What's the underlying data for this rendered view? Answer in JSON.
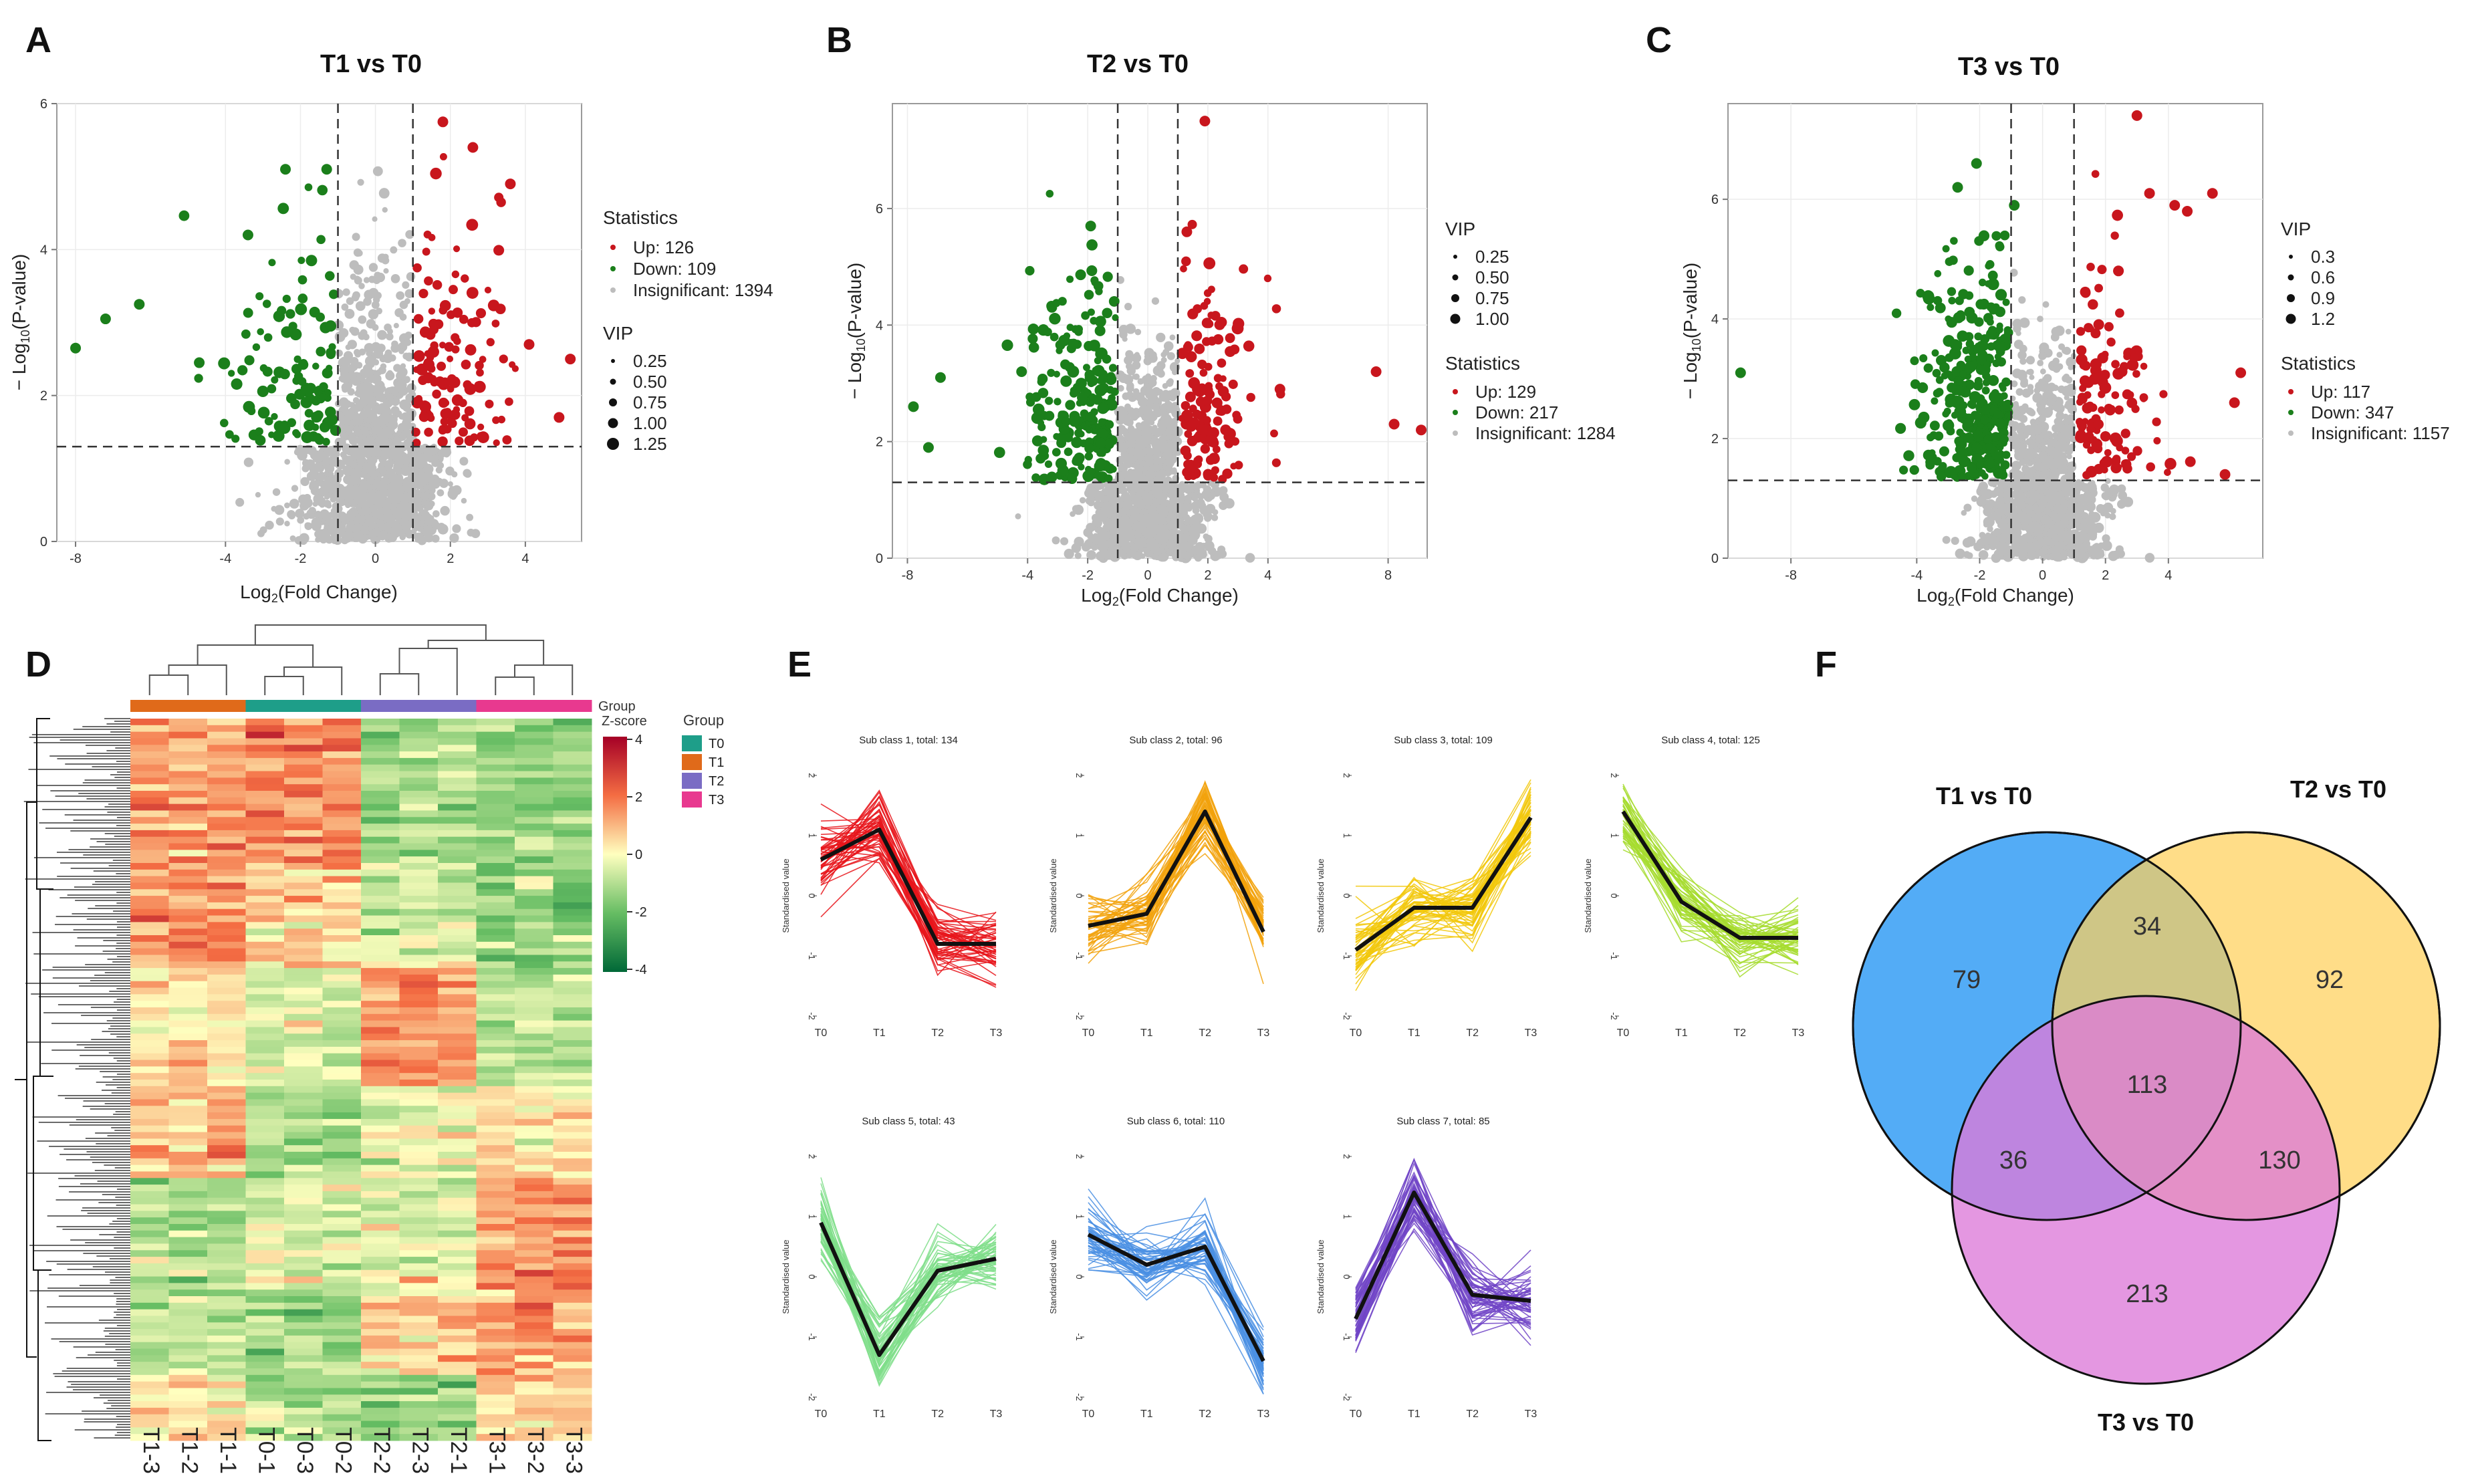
{
  "panels": [
    {
      "letter": "A",
      "title": "T1 vs T0"
    },
    {
      "letter": "B",
      "title": "T2 vs T0"
    },
    {
      "letter": "C",
      "title": "T3 vs T0"
    },
    {
      "letter": "D"
    },
    {
      "letter": "E"
    },
    {
      "letter": "F"
    }
  ],
  "colors": {
    "up": "#C8161D",
    "down": "#1B7F1B",
    "insig": "#BDBDBD",
    "axisBox": "#9a9a9a"
  },
  "chart_data": [
    {
      "id": "volcanoA",
      "type": "scatter",
      "title": "T1 vs T0",
      "xlabel": "Log2(Fold Change)",
      "ylabel": "-Log10(P-value)",
      "xlim": [
        -8.5,
        5.5
      ],
      "ylim": [
        0,
        6
      ],
      "xticks": [
        -8,
        -4,
        -2,
        0,
        2,
        4
      ],
      "yticks": [
        0,
        2,
        4,
        6
      ],
      "vlines": [
        -1,
        1
      ],
      "hline": 1.3,
      "statistics": {
        "title": "Statistics",
        "up": "Up: 126",
        "down": "Down: 109",
        "insig": "Insignificant: 1394"
      },
      "vip": {
        "title": "VIP",
        "levels": [
          "0.25",
          "0.50",
          "0.75",
          "1.00",
          "1.25"
        ]
      },
      "counts": {
        "up": 126,
        "down": 109,
        "insig": 1394
      },
      "down_extreme": [
        [
          -8,
          2.65
        ],
        [
          -7.2,
          3.05
        ],
        [
          -6.3,
          3.25
        ],
        [
          -4.7,
          2.45
        ],
        [
          -2.4,
          5.1
        ],
        [
          -1.3,
          5.1
        ],
        [
          -3.4,
          4.2
        ]
      ],
      "up_extreme": [
        [
          1.8,
          5.75
        ],
        [
          2.6,
          5.4
        ],
        [
          3.6,
          4.9
        ],
        [
          5.2,
          2.5
        ],
        [
          4.9,
          1.7
        ],
        [
          4.1,
          2.7
        ]
      ]
    },
    {
      "id": "volcanoB",
      "type": "scatter",
      "title": "T2 vs T0",
      "xlabel": "Log2(Fold Change)",
      "ylabel": "-Log10(P-value)",
      "xlim": [
        -8.5,
        9.3
      ],
      "ylim": [
        0,
        7.8
      ],
      "xticks": [
        -8,
        -4,
        -2,
        0,
        2,
        4,
        8
      ],
      "yticks": [
        0,
        2,
        4,
        6
      ],
      "vlines": [
        -1,
        1
      ],
      "hline": 1.3,
      "statistics": {
        "title": "Statistics",
        "up": "Up: 129",
        "down": "Down: 217",
        "insig": "Insignificant: 1284"
      },
      "vip": {
        "title": "VIP",
        "levels": [
          "0.25",
          "0.50",
          "0.75",
          "1.00"
        ]
      },
      "counts": {
        "up": 129,
        "down": 217,
        "insig": 1284
      },
      "down_extreme": [
        [
          -7.8,
          2.6
        ],
        [
          -7.3,
          1.9
        ],
        [
          -6.9,
          3.1
        ],
        [
          -4.2,
          3.2
        ],
        [
          -1.9,
          5.7
        ]
      ],
      "up_extreme": [
        [
          1.9,
          7.5
        ],
        [
          7.6,
          3.2
        ],
        [
          8.2,
          2.3
        ],
        [
          9.1,
          2.2
        ],
        [
          4.4,
          2.9
        ],
        [
          1.3,
          5.6
        ]
      ]
    },
    {
      "id": "volcanoC",
      "type": "scatter",
      "title": "T3 vs T0",
      "xlabel": "Log2(Fold Change)",
      "ylabel": "-Log10(P-value)",
      "xlim": [
        -10,
        7
      ],
      "ylim": [
        0,
        7.6
      ],
      "xticks": [
        -8,
        -4,
        -2,
        0,
        2,
        4
      ],
      "yticks": [
        0,
        2,
        4,
        6
      ],
      "vlines": [
        -1,
        1
      ],
      "hline": 1.3,
      "statistics": {
        "title": "Statistics",
        "up": "Up: 117",
        "down": "Down: 347",
        "insig": "Insignificant: 1157"
      },
      "vip": {
        "title": "VIP",
        "levels": [
          "0.3",
          "0.6",
          "0.9",
          "1.2"
        ]
      },
      "counts": {
        "up": 117,
        "down": 347,
        "insig": 1157
      },
      "down_extreme": [
        [
          -9.6,
          3.1
        ],
        [
          -2.1,
          6.6
        ],
        [
          -2.7,
          6.2
        ],
        [
          -0.9,
          5.9
        ]
      ],
      "up_extreme": [
        [
          3,
          7.4
        ],
        [
          3.4,
          6.1
        ],
        [
          4.2,
          5.9
        ],
        [
          4.6,
          5.8
        ],
        [
          5.4,
          6.1
        ],
        [
          6.3,
          3.1
        ],
        [
          5.8,
          1.4
        ],
        [
          6.1,
          2.6
        ]
      ]
    },
    {
      "id": "heatmap",
      "type": "heatmap",
      "samples": [
        "T1-3",
        "T1-2",
        "T1-1",
        "T0-1",
        "T0-3",
        "T0-2",
        "T2-2",
        "T2-3",
        "T2-1",
        "T3-1",
        "T3-2",
        "T3-3"
      ],
      "groups": [
        "T1",
        "T1",
        "T1",
        "T0",
        "T0",
        "T0",
        "T2",
        "T2",
        "T2",
        "T3",
        "T3",
        "T3"
      ],
      "group_colors": {
        "T0": "#1E9E89",
        "T1": "#E06A1A",
        "T2": "#7A6CC4",
        "T3": "#E8398F"
      },
      "legend_group_title": "Group",
      "legend_groups": [
        "T0",
        "T1",
        "T2",
        "T3"
      ],
      "annotation_label": "Group",
      "zscore_title": "Z-score",
      "zscore_ticks": [
        "4",
        "2",
        "0",
        "-2",
        "-4"
      ],
      "zlim": [
        -4,
        4
      ]
    },
    {
      "id": "kmeans",
      "type": "line",
      "x": [
        "T0",
        "T1",
        "T2",
        "T3"
      ],
      "ylabel": "Standardised value",
      "ylim": [
        -2,
        2
      ],
      "yticks": [
        "2",
        "1",
        "0",
        "-1",
        "-2"
      ],
      "subclasses": [
        {
          "title": "Sub class 1, total: 134",
          "color": "#E8151B",
          "mean": [
            0.6,
            1.1,
            -0.8,
            -0.8
          ]
        },
        {
          "title": "Sub class 2, total: 96",
          "color": "#F2A20C",
          "mean": [
            -0.5,
            -0.3,
            1.4,
            -0.6
          ]
        },
        {
          "title": "Sub class 3, total: 109",
          "color": "#F2C80C",
          "mean": [
            -0.9,
            -0.2,
            -0.2,
            1.3
          ]
        },
        {
          "title": "Sub class 4, total: 125",
          "color": "#A6DC2E",
          "mean": [
            1.4,
            -0.1,
            -0.7,
            -0.7
          ]
        },
        {
          "title": "Sub class 5, total: 43",
          "color": "#7FDE8A",
          "mean": [
            0.9,
            -1.3,
            0.1,
            0.3
          ]
        },
        {
          "title": "Sub class 6, total: 110",
          "color": "#4A8FE3",
          "mean": [
            0.7,
            0.2,
            0.5,
            -1.4
          ]
        },
        {
          "title": "Sub class 7, total: 85",
          "color": "#7145C7",
          "mean": [
            -0.7,
            1.4,
            -0.3,
            -0.4
          ]
        }
      ]
    },
    {
      "id": "venn",
      "type": "venn",
      "sets": [
        "T1 vs T0",
        "T2 vs T0",
        "T3 vs T0"
      ],
      "set_colors": {
        "T1": "#4AA8F5",
        "T2": "#FFD05A",
        "T3": "#DD7AD8"
      },
      "regions": {
        "t1_only": "79",
        "t2_only": "92",
        "t3_only": "213",
        "t1_t2": "34",
        "t1_t3": "36",
        "t2_t3": "130",
        "all": "113"
      }
    }
  ]
}
